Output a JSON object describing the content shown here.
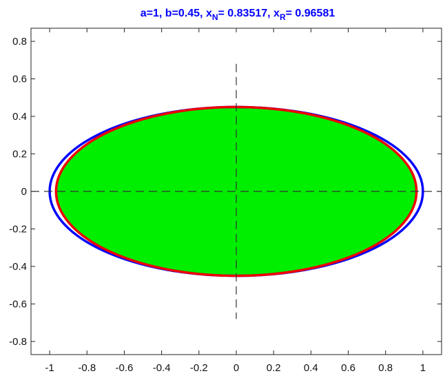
{
  "colors": {
    "title": "#0000ff",
    "ellipse_blue": "#0000ff",
    "ellipse_red": "#ee0000",
    "fill_green": "#00ee00",
    "axes": "#222222",
    "dashed_lines": "#333333"
  },
  "chart_data": {
    "type": "area",
    "title": {
      "part1": "a=1, b=0.45, x",
      "sub1": "N",
      "part2": "= 0.83517, x",
      "sub2": "R",
      "part3": "= 0.96581"
    },
    "xlabel": "",
    "ylabel": "",
    "xlim": [
      -1.1,
      1.1
    ],
    "ylim": [
      -0.87,
      0.87
    ],
    "x_ticks": [
      "-1",
      "-0.8",
      "-0.6",
      "-0.4",
      "-0.2",
      "0",
      "0.2",
      "0.4",
      "0.6",
      "0.8",
      "1"
    ],
    "x_tick_values": [
      -1,
      -0.8,
      -0.6,
      -0.4,
      -0.2,
      0,
      0.2,
      0.4,
      0.6,
      0.8,
      1
    ],
    "y_ticks": [
      "0.8",
      "0.6",
      "0.4",
      "0.2",
      "0",
      "-0.2",
      "-0.4",
      "-0.6",
      "-0.8"
    ],
    "y_tick_values": [
      0.8,
      0.6,
      0.4,
      0.2,
      0,
      -0.2,
      -0.4,
      -0.6,
      -0.8
    ],
    "grid": false,
    "params": {
      "a": 1,
      "b": 0.45,
      "x_N": 0.83517,
      "x_R": 0.96581
    },
    "series": [
      {
        "shape": "ellipse",
        "semi_x": 1.0,
        "semi_y": 0.45,
        "color": "#0000ff",
        "fill": "none"
      },
      {
        "shape": "ellipse",
        "semi_x": 0.96581,
        "semi_y": 0.45,
        "color": "#ee0000",
        "fill": "#00ee00"
      }
    ],
    "crosshair": {
      "horizontal": {
        "y": 0,
        "x_range": [
          -1.1,
          1.1
        ]
      },
      "vertical": {
        "x": 0,
        "y_range": [
          -0.68,
          0.68
        ]
      }
    }
  }
}
